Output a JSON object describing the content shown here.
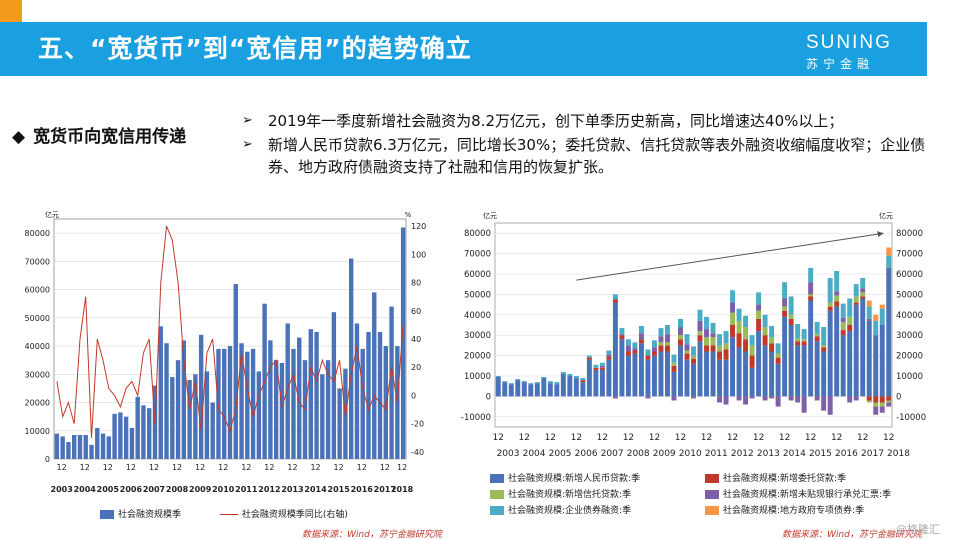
{
  "header": {
    "title": "五、“宽货币”到“宽信用”的趋势确立",
    "logo_en": "SUNING",
    "logo_cn": "苏宁金融"
  },
  "section": {
    "heading": "宽货币向宽信用传递",
    "bullets": [
      "2019年一季度新增社会融资为8.2万亿元，创下单季历史新高，同比增速达40%以上；",
      "新增人民币贷款6.3万亿元，同比增长30%；委托贷款、信托贷款等表外融资收缩幅度收窄；企业债券、地方政府债融资支持了社融和信用的恢复扩张。"
    ]
  },
  "chart_left": {
    "left_unit": "亿元",
    "right_unit": "%",
    "legend_bar": "社会融资规模季",
    "legend_line": "社会融资规模季同比(右轴)",
    "source": "数据来源：Wind，苏宁金融研究院"
  },
  "chart_right": {
    "left_unit": "亿元",
    "right_unit": "亿元",
    "legend": [
      "社会融资规模:新增人民币贷款:季",
      "社会融资规模:新增委托贷款:季",
      "社会融资规模:新增信托贷款:季",
      "社会融资规模:新增未贴现银行承兑汇票:季",
      "社会融资规模:企业债券融资:季",
      "社会融资规模:地方政府专项债券:季"
    ],
    "source": "数据来源：Wind，苏宁金融研究院"
  },
  "watermark": "@格隆汇",
  "chart_data": [
    {
      "type": "bar",
      "title": "",
      "years": [
        "2003",
        "2004",
        "2005",
        "2006",
        "2007",
        "2008",
        "2009",
        "2010",
        "2011",
        "2012",
        "2013",
        "2014",
        "2015",
        "2016",
        "2017",
        "2018"
      ],
      "ylim": [
        0,
        85000
      ],
      "yticks": [
        0,
        10000,
        20000,
        30000,
        40000,
        50000,
        60000,
        70000,
        80000
      ],
      "y2lim": [
        -45,
        125
      ],
      "y2ticks": [
        -40,
        -20,
        0,
        20,
        40,
        60,
        80,
        100,
        120
      ],
      "series": [
        {
          "name": "社会融资规模季",
          "color": "#4a72b8",
          "values": [
            9000,
            8000,
            6000,
            8500,
            8500,
            8500,
            5000,
            11000,
            9000,
            8000,
            16000,
            16500,
            15000,
            11000,
            22000,
            19000,
            18000,
            26000,
            47000,
            41000,
            29000,
            35000,
            42000,
            28000,
            30000,
            44000,
            31000,
            20000,
            39000,
            39000,
            40000,
            62000,
            41000,
            38000,
            39000,
            31000,
            55000,
            42000,
            35000,
            34000,
            48000,
            39000,
            43000,
            35000,
            46000,
            45000,
            30000,
            35000,
            52000,
            25000,
            32000,
            71000,
            48000,
            39000,
            45000,
            59000,
            45000,
            40000,
            54000,
            40000,
            82000
          ]
        },
        {
          "name": "社会融资规模季同比(右轴)",
          "color": "#c0392b",
          "values": [
            10,
            -15,
            -5,
            -20,
            40,
            70,
            -30,
            40,
            25,
            5,
            0,
            -8,
            5,
            10,
            0,
            30,
            40,
            -20,
            80,
            120,
            110,
            80,
            25,
            -10,
            10,
            -25,
            30,
            40,
            -10,
            -15,
            -25,
            -10,
            30,
            5,
            -15,
            0,
            10,
            20,
            25,
            -8,
            5,
            15,
            -5,
            -10,
            20,
            10,
            25,
            15,
            10,
            25,
            -15,
            15,
            35,
            5,
            -10,
            0,
            -5,
            -10,
            20,
            -5,
            50
          ]
        }
      ]
    },
    {
      "type": "bar",
      "title": "",
      "years": [
        "2003",
        "2004",
        "2005",
        "2006",
        "2007",
        "2008",
        "2009",
        "2010",
        "2011",
        "2012",
        "2013",
        "2014",
        "2015",
        "2016",
        "2017",
        "2018"
      ],
      "ylim": [
        -15000,
        85000
      ],
      "yticks": [
        -10000,
        0,
        10000,
        20000,
        30000,
        40000,
        50000,
        60000,
        70000,
        80000
      ],
      "series": [
        {
          "name": "社会融资规模:新增人民币贷款:季",
          "color": "#4a72b8",
          "values": [
            9500,
            7000,
            6000,
            8000,
            7000,
            6000,
            6500,
            9000,
            6500,
            6000,
            11000,
            10000,
            9000,
            7000,
            18000,
            13000,
            13000,
            18000,
            46000,
            28000,
            20000,
            21000,
            26000,
            18000,
            20000,
            22000,
            22000,
            12000,
            25000,
            18000,
            16000,
            27000,
            22000,
            22000,
            18000,
            18000,
            29000,
            24000,
            22000,
            14000,
            32000,
            25000,
            22000,
            16000,
            39000,
            35000,
            25000,
            25000,
            47000,
            27000,
            22000,
            42000,
            44000,
            30000,
            32000,
            45000,
            48000,
            37000,
            30000,
            35000,
            63000
          ]
        },
        {
          "name": "社会融资规模:新增委托贷款:季",
          "color": "#c0392b",
          "values": [
            0,
            0,
            0,
            0,
            0,
            0,
            0,
            0,
            0,
            0,
            0,
            0,
            0,
            1000,
            1000,
            1000,
            1000,
            1500,
            1500,
            2000,
            2000,
            1500,
            2000,
            2000,
            2000,
            3000,
            3000,
            3000,
            3000,
            3000,
            2500,
            3000,
            3000,
            3000,
            4000,
            5000,
            6000,
            7000,
            6000,
            6000,
            6000,
            5000,
            4000,
            3000,
            3000,
            3000,
            2000,
            2000,
            2000,
            2500,
            2000,
            2000,
            2500,
            2500,
            3000,
            1000,
            1000,
            -2000,
            -3000,
            -3000,
            -2000
          ]
        },
        {
          "name": "社会融资规模:新增信托贷款:季",
          "color": "#9bbb59",
          "values": [
            0,
            0,
            0,
            0,
            0,
            0,
            0,
            0,
            0,
            0,
            0,
            0,
            0,
            0,
            0,
            0,
            0,
            0,
            0,
            0,
            0,
            0,
            0,
            0,
            0,
            1500,
            1500,
            1500,
            2000,
            1500,
            1500,
            2000,
            4000,
            4000,
            3000,
            3000,
            6000,
            6000,
            6000,
            5000,
            4000,
            4000,
            3000,
            2000,
            2000,
            2000,
            1500,
            1000,
            1000,
            1000,
            1000,
            2000,
            3000,
            4000,
            4000,
            3000,
            2000,
            -1000,
            -2000,
            -2000,
            -1000
          ]
        },
        {
          "name": "社会融资规模:新增未贴现银行承兑汇票:季",
          "color": "#7f60a8",
          "values": [
            0,
            0,
            0,
            0,
            0,
            0,
            0,
            0,
            0,
            0,
            0,
            0,
            0,
            0,
            0,
            0,
            1000,
            1000,
            -1000,
            500,
            3000,
            1000,
            3000,
            -1000,
            2000,
            3000,
            4000,
            -2000,
            4000,
            3000,
            -1000,
            5000,
            4000,
            2000,
            -3000,
            -4000,
            5000,
            -2000,
            -4000,
            -1000,
            3000,
            -2000,
            -1000,
            -5000,
            4000,
            -2000,
            -3000,
            -8000,
            6000,
            -2000,
            -7000,
            -9000,
            2000,
            2000,
            -3000,
            -2000,
            2000,
            1000,
            -4000,
            -3000,
            -2000
          ]
        },
        {
          "name": "社会融资规模:企业债券融资:季",
          "color": "#4bacc6",
          "values": [
            500,
            500,
            500,
            500,
            500,
            500,
            500,
            500,
            1000,
            1000,
            1000,
            1000,
            1000,
            1000,
            1000,
            1500,
            1500,
            2000,
            2500,
            3000,
            3000,
            3000,
            3500,
            3000,
            3500,
            4000,
            4500,
            4000,
            4000,
            5000,
            4500,
            5500,
            6000,
            5000,
            5500,
            6000,
            6000,
            6000,
            5500,
            5000,
            6000,
            6000,
            5500,
            5000,
            8000,
            9000,
            7000,
            5000,
            7000,
            6000,
            9000,
            12000,
            10000,
            7000,
            9000,
            6000,
            5000,
            6000,
            7000,
            8000,
            6000
          ]
        },
        {
          "name": "社会融资规模:地方政府专项债券:季",
          "color": "#f79646",
          "values": [
            0,
            0,
            0,
            0,
            0,
            0,
            0,
            0,
            0,
            0,
            0,
            0,
            0,
            0,
            0,
            0,
            0,
            0,
            0,
            0,
            0,
            0,
            0,
            0,
            0,
            0,
            0,
            0,
            0,
            0,
            0,
            0,
            0,
            0,
            0,
            0,
            0,
            0,
            0,
            0,
            0,
            0,
            0,
            0,
            0,
            0,
            0,
            0,
            0,
            0,
            0,
            0,
            0,
            0,
            0,
            0,
            0,
            3000,
            3000,
            2000,
            4000
          ]
        }
      ]
    }
  ]
}
